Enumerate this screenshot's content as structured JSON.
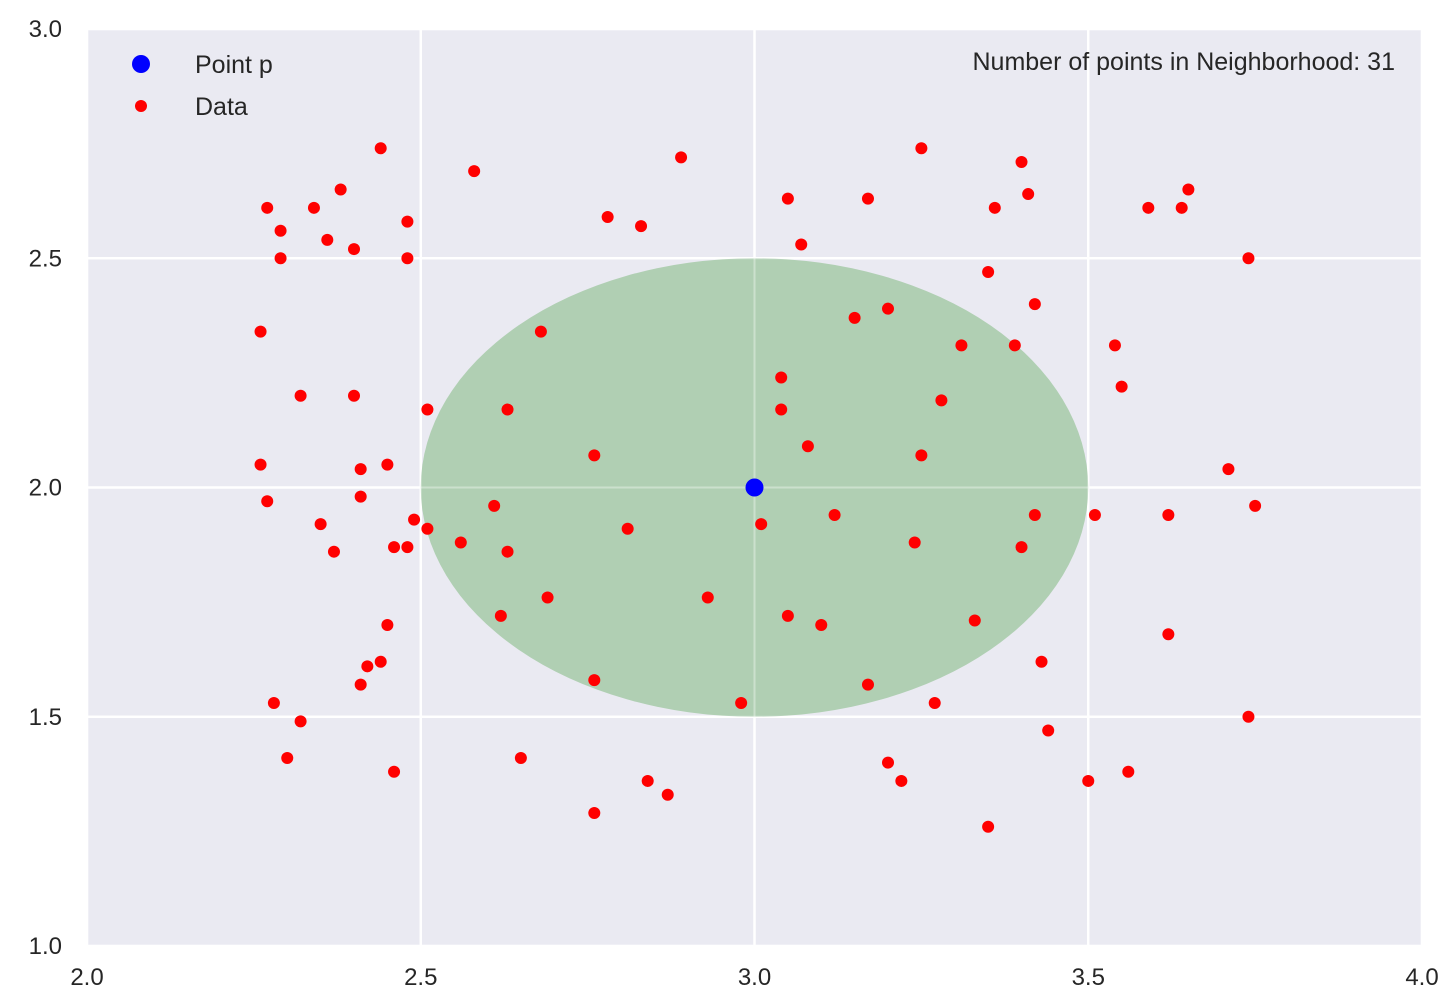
{
  "chart_data": {
    "type": "scatter",
    "title": "",
    "xlabel": "",
    "ylabel": "",
    "xlim": [
      2.0,
      4.0
    ],
    "ylim": [
      1.0,
      3.0
    ],
    "xticks": [
      "2.0",
      "2.5",
      "3.0",
      "3.5",
      "4.0"
    ],
    "yticks": [
      "1.0",
      "1.5",
      "2.0",
      "2.5",
      "3.0"
    ],
    "grid": true,
    "legend_position": "upper left",
    "background_color": "#eaeaf2",
    "annotation": "Number of points in Neighborhood: 31",
    "neighborhood": {
      "shape": "circle",
      "center": [
        3.0,
        2.0
      ],
      "radius": 0.5,
      "color": "#b0cfb3"
    },
    "series": [
      {
        "name": "Point p",
        "color": "#0000ff",
        "marker": "o",
        "size": "large",
        "points": [
          [
            3.0,
            2.0
          ]
        ]
      },
      {
        "name": "Data",
        "color": "#ff0000",
        "marker": "o",
        "size": "small",
        "points": [
          [
            2.44,
            2.74
          ],
          [
            2.58,
            2.69
          ],
          [
            2.89,
            2.72
          ],
          [
            3.25,
            2.74
          ],
          [
            3.4,
            2.71
          ],
          [
            2.27,
            2.61
          ],
          [
            2.34,
            2.61
          ],
          [
            2.38,
            2.65
          ],
          [
            2.48,
            2.58
          ],
          [
            2.78,
            2.59
          ],
          [
            2.83,
            2.57
          ],
          [
            3.05,
            2.63
          ],
          [
            3.17,
            2.63
          ],
          [
            3.36,
            2.61
          ],
          [
            3.41,
            2.64
          ],
          [
            3.59,
            2.61
          ],
          [
            3.64,
            2.61
          ],
          [
            3.65,
            2.65
          ],
          [
            2.29,
            2.56
          ],
          [
            2.36,
            2.54
          ],
          [
            2.4,
            2.52
          ],
          [
            2.29,
            2.5
          ],
          [
            2.48,
            2.5
          ],
          [
            3.07,
            2.53
          ],
          [
            3.74,
            2.5
          ],
          [
            3.35,
            2.47
          ],
          [
            3.42,
            2.4
          ],
          [
            3.2,
            2.39
          ],
          [
            3.15,
            2.37
          ],
          [
            2.26,
            2.34
          ],
          [
            2.68,
            2.34
          ],
          [
            3.31,
            2.31
          ],
          [
            3.39,
            2.31
          ],
          [
            3.54,
            2.31
          ],
          [
            3.04,
            2.24
          ],
          [
            3.55,
            2.22
          ],
          [
            2.32,
            2.2
          ],
          [
            2.4,
            2.2
          ],
          [
            3.28,
            2.19
          ],
          [
            2.51,
            2.17
          ],
          [
            2.63,
            2.17
          ],
          [
            3.04,
            2.17
          ],
          [
            3.08,
            2.09
          ],
          [
            2.26,
            2.05
          ],
          [
            2.41,
            2.04
          ],
          [
            2.45,
            2.05
          ],
          [
            2.76,
            2.07
          ],
          [
            3.25,
            2.07
          ],
          [
            3.71,
            2.04
          ],
          [
            2.27,
            1.97
          ],
          [
            2.41,
            1.98
          ],
          [
            3.75,
            1.96
          ],
          [
            2.49,
            1.93
          ],
          [
            2.51,
            1.91
          ],
          [
            2.61,
            1.96
          ],
          [
            3.01,
            1.92
          ],
          [
            3.12,
            1.94
          ],
          [
            3.42,
            1.94
          ],
          [
            3.51,
            1.94
          ],
          [
            3.62,
            1.94
          ],
          [
            2.35,
            1.92
          ],
          [
            2.81,
            1.91
          ],
          [
            2.56,
            1.88
          ],
          [
            2.37,
            1.86
          ],
          [
            2.46,
            1.87
          ],
          [
            2.48,
            1.87
          ],
          [
            2.63,
            1.86
          ],
          [
            3.24,
            1.88
          ],
          [
            3.4,
            1.87
          ],
          [
            2.69,
            1.76
          ],
          [
            2.93,
            1.76
          ],
          [
            2.62,
            1.72
          ],
          [
            3.05,
            1.72
          ],
          [
            3.1,
            1.7
          ],
          [
            3.33,
            1.71
          ],
          [
            2.45,
            1.7
          ],
          [
            3.62,
            1.68
          ],
          [
            2.42,
            1.61
          ],
          [
            2.44,
            1.62
          ],
          [
            3.43,
            1.62
          ],
          [
            2.41,
            1.57
          ],
          [
            2.76,
            1.58
          ],
          [
            3.17,
            1.57
          ],
          [
            2.28,
            1.53
          ],
          [
            2.98,
            1.53
          ],
          [
            3.27,
            1.53
          ],
          [
            2.32,
            1.49
          ],
          [
            3.74,
            1.5
          ],
          [
            3.44,
            1.47
          ],
          [
            2.3,
            1.41
          ],
          [
            2.65,
            1.41
          ],
          [
            2.46,
            1.38
          ],
          [
            3.2,
            1.4
          ],
          [
            3.56,
            1.38
          ],
          [
            2.84,
            1.36
          ],
          [
            3.22,
            1.36
          ],
          [
            2.87,
            1.33
          ],
          [
            3.5,
            1.36
          ],
          [
            2.76,
            1.29
          ],
          [
            3.35,
            1.26
          ]
        ]
      }
    ]
  },
  "legend": {
    "items": [
      {
        "label": "Point p",
        "color": "#0000ff"
      },
      {
        "label": "Data",
        "color": "#ff0000"
      }
    ]
  },
  "annotation_text": "Number of points in Neighborhood: 31"
}
